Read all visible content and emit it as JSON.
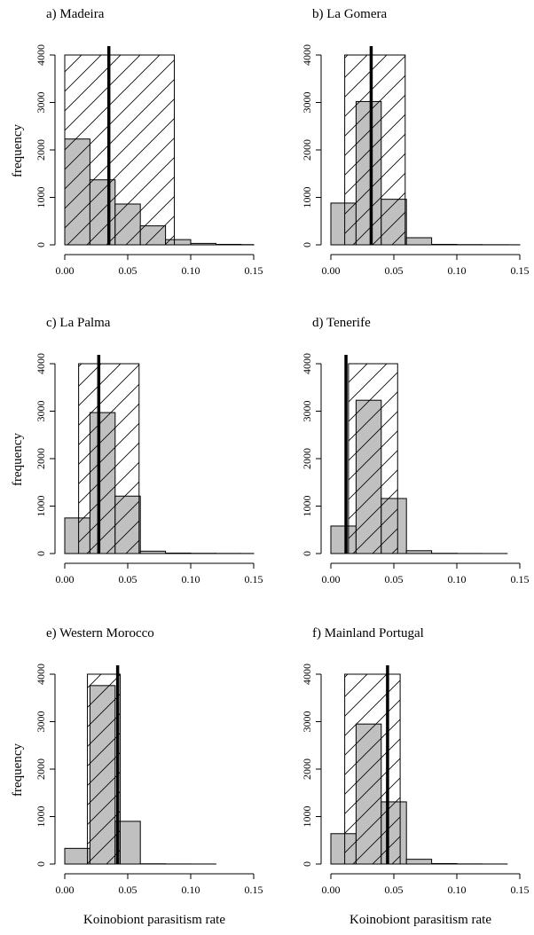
{
  "chart_data": [
    {
      "type": "histogram",
      "title": "a) Madeira",
      "ylabel": "frequency",
      "bins": [
        0,
        0.02,
        0.04,
        0.06,
        0.08,
        0.1,
        0.12,
        0.14,
        0.15
      ],
      "values": [
        2230,
        1370,
        860,
        400,
        110,
        30,
        10,
        5
      ],
      "interval": [
        0,
        0.087
      ],
      "interval_height": 4000,
      "observed": 0.035,
      "xlim": [
        0,
        0.15
      ],
      "ylim": [
        0,
        4000
      ],
      "xticks": [
        {
          "value": 0,
          "label": "0.00"
        },
        0.05,
        {
          "value": 0.1,
          "label": "0.10"
        },
        0.15
      ],
      "yticks": [
        0,
        1000,
        2000,
        3000,
        4000
      ],
      "color": "#c0c0c0"
    },
    {
      "type": "histogram",
      "title": "b) La Gomera",
      "bins": [
        0,
        0.02,
        0.04,
        0.06,
        0.08,
        0.1,
        0.12,
        0.14,
        0.15
      ],
      "values": [
        880,
        3020,
        960,
        150,
        10,
        5,
        3,
        2
      ],
      "interval": [
        0.011,
        0.059
      ],
      "interval_height": 4000,
      "observed": 0.032,
      "xlim": [
        0,
        0.15
      ],
      "ylim": [
        0,
        4000
      ],
      "xticks": [
        {
          "value": 0,
          "label": "0.00"
        },
        0.05,
        {
          "value": 0.1,
          "label": "0.10"
        },
        0.15
      ],
      "yticks": [
        0,
        1000,
        2000,
        3000,
        4000
      ],
      "color": "#c0c0c0"
    },
    {
      "type": "histogram",
      "title": "c) La Palma",
      "ylabel": "frequency",
      "bins": [
        0,
        0.02,
        0.04,
        0.06,
        0.08,
        0.1,
        0.12,
        0.14,
        0.15
      ],
      "values": [
        750,
        2970,
        1210,
        50,
        10,
        5,
        3,
        2
      ],
      "interval": [
        0.011,
        0.059
      ],
      "interval_height": 4000,
      "observed": 0.027,
      "xlim": [
        0,
        0.15
      ],
      "ylim": [
        0,
        4000
      ],
      "xticks": [
        {
          "value": 0,
          "label": "0.00"
        },
        0.05,
        {
          "value": 0.1,
          "label": "0.10"
        },
        0.15
      ],
      "yticks": [
        0,
        1000,
        2000,
        3000,
        4000
      ],
      "color": "#c0c0c0"
    },
    {
      "type": "histogram",
      "title": "d) Tenerife",
      "bins": [
        0,
        0.02,
        0.04,
        0.06,
        0.08,
        0.1,
        0.12,
        0.14,
        0.15
      ],
      "values": [
        580,
        3230,
        1160,
        60,
        5,
        2,
        1,
        0
      ],
      "interval": [
        0.014,
        0.053
      ],
      "interval_height": 4000,
      "observed": 0.012,
      "xlim": [
        0,
        0.15
      ],
      "ylim": [
        0,
        4000
      ],
      "xticks": [
        {
          "value": 0,
          "label": "0.00"
        },
        0.05,
        {
          "value": 0.1,
          "label": "0.10"
        },
        0.15
      ],
      "yticks": [
        0,
        1000,
        2000,
        3000,
        4000
      ],
      "color": "#c0c0c0"
    },
    {
      "type": "histogram",
      "title": "e) Western Morocco",
      "ylabel": "frequency",
      "xlabel": "Koinobiont parasitism rate",
      "bins": [
        0,
        0.02,
        0.04,
        0.06,
        0.08,
        0.1,
        0.12,
        0.14,
        0.15
      ],
      "values": [
        330,
        3760,
        900,
        5,
        2,
        1,
        0,
        0
      ],
      "interval": [
        0.018,
        0.044
      ],
      "interval_height": 4000,
      "observed": 0.042,
      "xlim": [
        0,
        0.15
      ],
      "ylim": [
        0,
        4000
      ],
      "xticks": [
        {
          "value": 0,
          "label": "0.00"
        },
        0.05,
        {
          "value": 0.1,
          "label": "0.10"
        },
        0.15
      ],
      "yticks": [
        0,
        1000,
        2000,
        3000,
        4000
      ],
      "color": "#c0c0c0"
    },
    {
      "type": "histogram",
      "title": "f) Mainland Portugal",
      "xlabel": "Koinobiont parasitism rate",
      "bins": [
        0,
        0.02,
        0.04,
        0.06,
        0.08,
        0.1,
        0.12,
        0.14,
        0.15
      ],
      "values": [
        640,
        2950,
        1310,
        100,
        10,
        3,
        1,
        0
      ],
      "interval": [
        0.011,
        0.055
      ],
      "interval_height": 4000,
      "observed": 0.045,
      "xlim": [
        0,
        0.15
      ],
      "ylim": [
        0,
        4000
      ],
      "xticks": [
        {
          "value": 0,
          "label": "0.00"
        },
        0.05,
        {
          "value": 0.1,
          "label": "0.10"
        },
        0.15
      ],
      "yticks": [
        0,
        1000,
        2000,
        3000,
        4000
      ],
      "color": "#c0c0c0"
    }
  ]
}
